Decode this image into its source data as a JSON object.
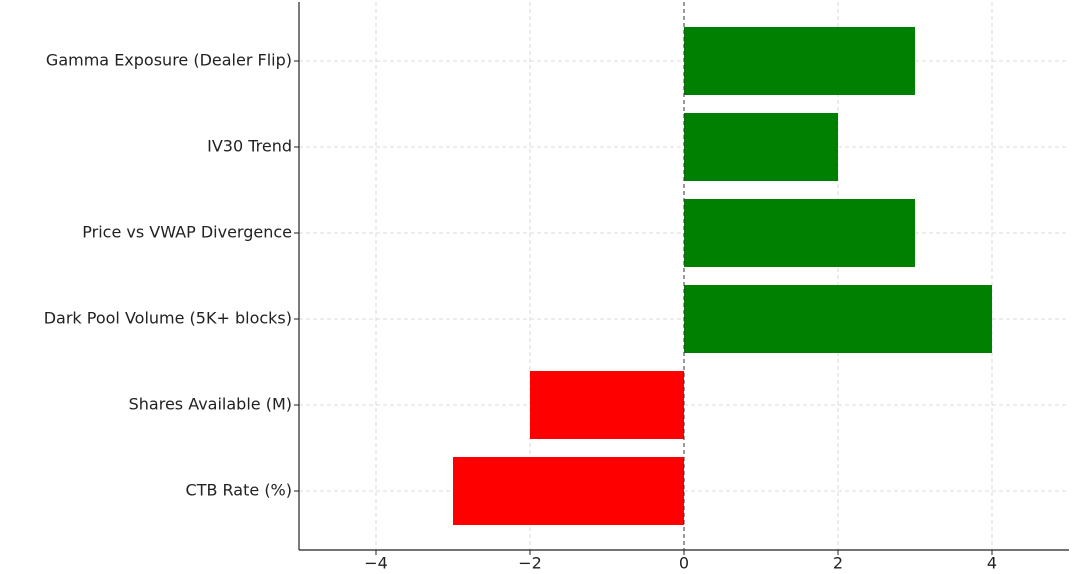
{
  "chart_data": {
    "type": "barh",
    "categories": [
      "Gamma Exposure (Dealer Flip)",
      "IV30 Trend",
      "Price vs VWAP Divergence",
      "Dark Pool Volume (5K+ blocks)",
      "Shares Available (M)",
      "CTB Rate (%)"
    ],
    "values": [
      3,
      2,
      3,
      4,
      -2,
      -3
    ],
    "colors": [
      "#008000",
      "#008000",
      "#008000",
      "#008000",
      "#ff0000",
      "#ff0000"
    ],
    "xlim": [
      -5,
      5
    ],
    "xticks": [
      {
        "value": -4,
        "label": "−4"
      },
      {
        "value": -2,
        "label": "−2"
      },
      0,
      2,
      4
    ],
    "grid": true,
    "zero_line": true
  }
}
